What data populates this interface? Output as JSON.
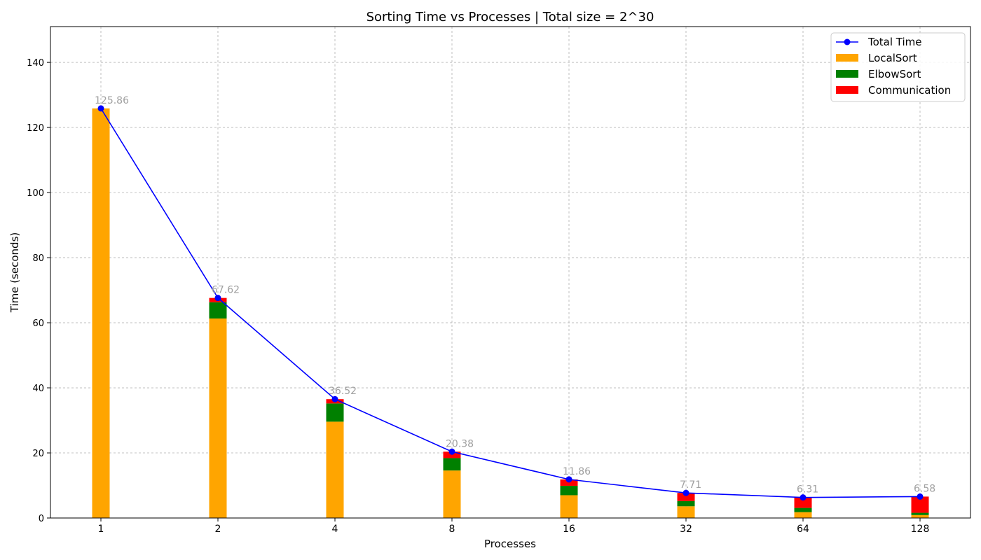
{
  "chart_data": {
    "type": "bar",
    "title": "Sorting Time vs Processes | Total size = 2^30",
    "xlabel": "Processes",
    "ylabel": "Time (seconds)",
    "ylim": [
      0,
      151
    ],
    "yticks": [
      0,
      20,
      40,
      60,
      80,
      100,
      120,
      140
    ],
    "grid": true,
    "legend_position": "top-right",
    "categories": [
      "1",
      "2",
      "4",
      "8",
      "16",
      "32",
      "64",
      "128"
    ],
    "series": [
      {
        "name": "LocalSort",
        "color": "#ffa500",
        "kind": "bar",
        "values": [
          125.86,
          61.3,
          29.6,
          14.6,
          7.0,
          3.6,
          1.8,
          0.9
        ]
      },
      {
        "name": "ElbowSort",
        "color": "#008000",
        "kind": "bar",
        "values": [
          0.0,
          5.0,
          5.6,
          3.8,
          2.9,
          1.6,
          1.3,
          0.7
        ]
      },
      {
        "name": "Communication",
        "color": "#ff0000",
        "kind": "bar",
        "values": [
          0.0,
          1.32,
          1.32,
          1.98,
          1.96,
          2.51,
          3.21,
          4.98
        ]
      },
      {
        "name": "Total Time",
        "color": "#0000ff",
        "kind": "line",
        "values": [
          125.86,
          67.62,
          36.52,
          20.38,
          11.86,
          7.71,
          6.31,
          6.58
        ]
      }
    ],
    "data_labels": [
      "125.86",
      "67.62",
      "36.52",
      "20.38",
      "11.86",
      "7.71",
      "6.31",
      "6.58"
    ]
  }
}
